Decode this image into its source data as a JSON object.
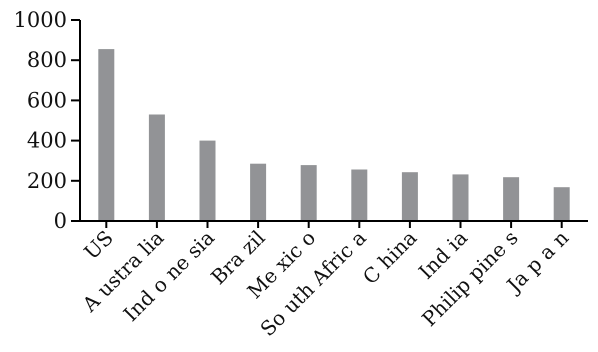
{
  "chart_data": {
    "type": "bar",
    "title": "",
    "xlabel": "",
    "ylabel": "",
    "categories": [
      "US",
      "Australia",
      "Indonesia",
      "Brazil",
      "Mexico",
      "South Africa",
      "China",
      "India",
      "Philippines",
      "Japan"
    ],
    "display_categories": [
      "US",
      "A ustra lia",
      "Ind o ne sia",
      "Bra zil",
      "Me xic o",
      "So uth Afric a",
      "C hina",
      "Ind ia",
      "Philip pine s",
      "Ja p a n"
    ],
    "values": [
      855,
      530,
      400,
      285,
      278,
      256,
      243,
      232,
      218,
      168
    ],
    "ylim": [
      0,
      1000
    ],
    "yticks": [
      0,
      200,
      400,
      600,
      800,
      1000
    ],
    "grid": false,
    "legend": "none",
    "colors": {
      "bar": "#929396",
      "axis": "#000000",
      "text": "#111111"
    }
  }
}
